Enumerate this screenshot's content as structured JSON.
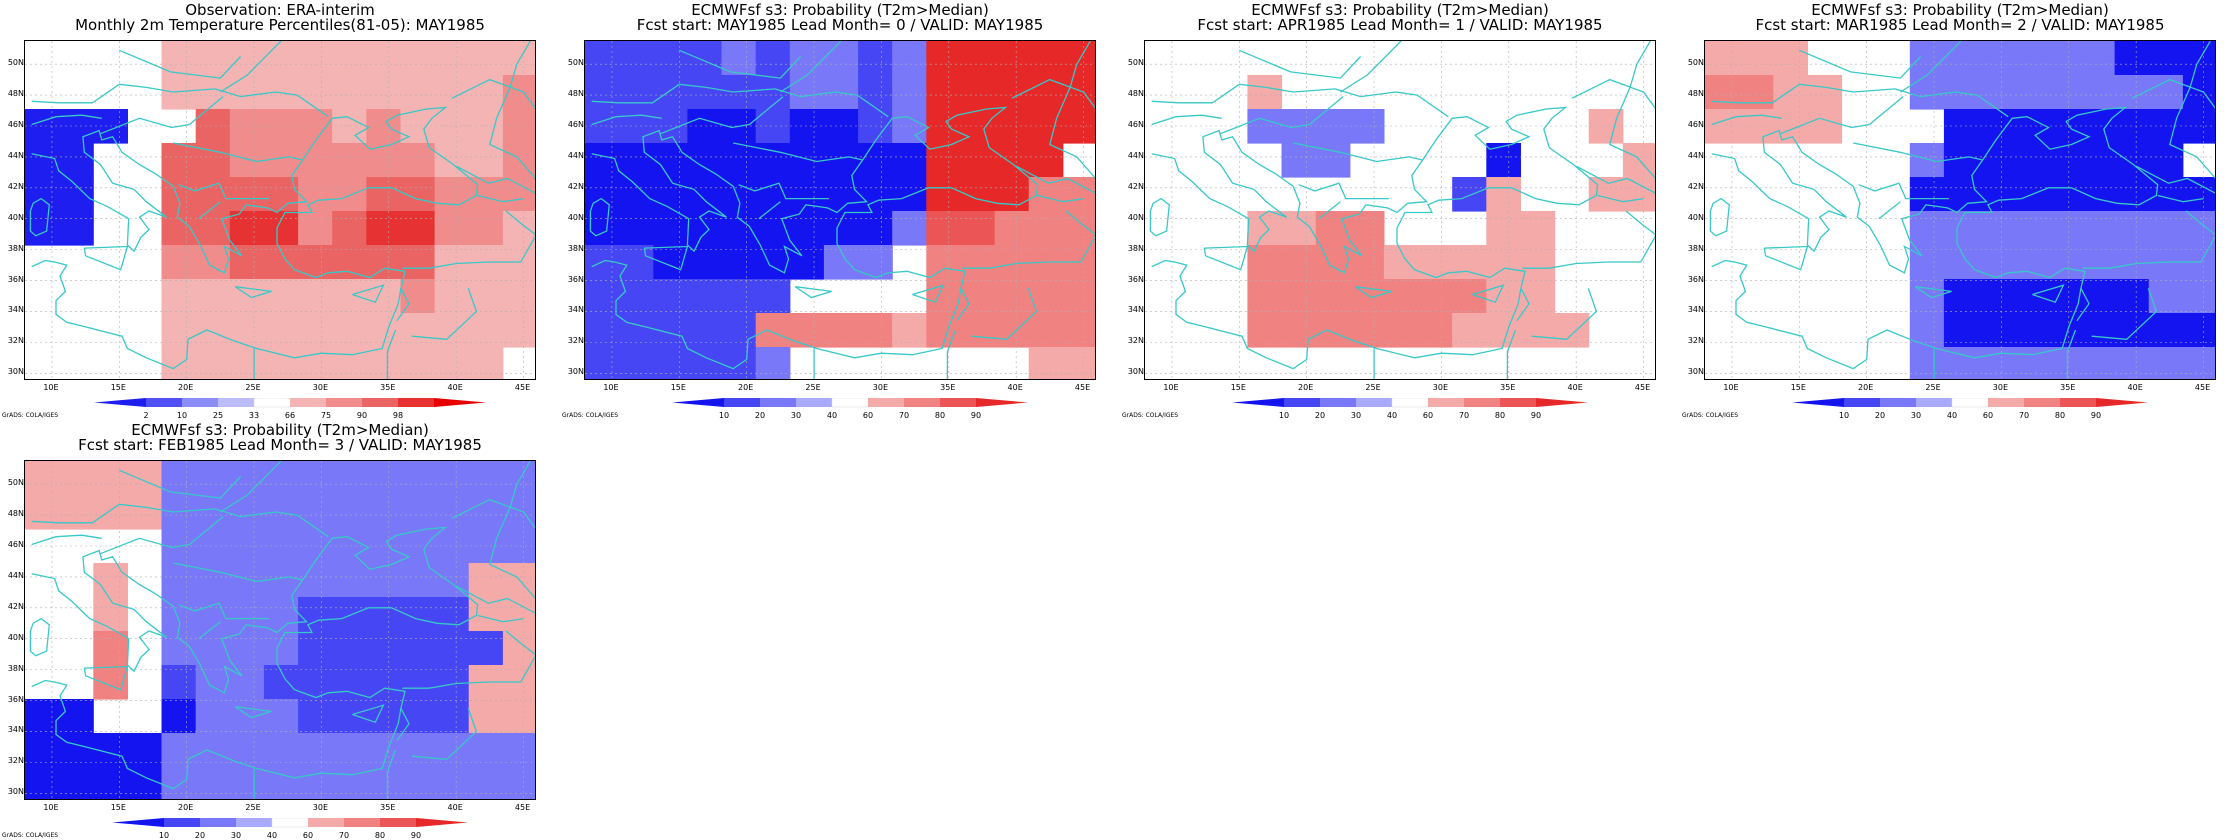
{
  "lat_ticks": [
    "30N",
    "32N",
    "34N",
    "36N",
    "38N",
    "40N",
    "42N",
    "44N",
    "46N",
    "48N",
    "50N"
  ],
  "lon_ticks": [
    "10E",
    "15E",
    "20E",
    "25E",
    "30E",
    "35E",
    "40E",
    "45E"
  ],
  "credit": "GrADS: COLA/IGES",
  "colors": {
    "obs": [
      "#1e1ef0",
      "#5050f5",
      "#8c8cf8",
      "#bcbcfa",
      "#ffffff",
      "#f5b4b4",
      "#f08c8c",
      "#eb6464",
      "#e63232",
      "#e60000"
    ],
    "fcst": [
      "#1414f0",
      "#4646f5",
      "#7878f8",
      "#aaaafa",
      "#ffffff",
      "#f5aaaa",
      "#f08282",
      "#eb5555",
      "#e62828"
    ],
    "coast": "#38c8c8"
  },
  "panels": [
    {
      "title1": "Observation: ERA-interim",
      "title2": "Monthly 2m Temperature Percentiles(81-05): MAY1985",
      "colorbar_ticks": [
        "2",
        "10",
        "25",
        "33",
        "66",
        "75",
        "90",
        "98"
      ],
      "scale": "obs",
      "grid": [
        "4444LLLLLLLLLLL",
        "4444LLLLLLLLLLM",
        "11145RQQNLQLLLM",
        "1144RRMMMMQQLLM",
        "1144RRRRMMRRMMM",
        "1144RRSSQRSSMML",
        "4444QQRRRRRRLLL",
        "4444LLLLLLLQLLL",
        "4444LLLLLLLLLLL",
        "4444LLLLLLLLLL4"
      ]
    },
    {
      "title1": "ECMWFsf s3: Probability (T2m>Median)",
      "title2": "Fcst start: MAY1985  Lead Month= 0 / VALID: MAY1985",
      "colorbar_ticks": [
        "10",
        "20",
        "30",
        "40",
        "60",
        "70",
        "80",
        "90"
      ],
      "scale": "fcst",
      "grid": [
        "2222323323SSSSS",
        "2222223323SSSSS",
        "2221121123SSSSS",
        "1111111111SSSS4",
        "1111111111SSSMM",
        "1111111113RRMMM",
        "2211111334MMMMM",
        "2222224444MMMMM",
        "22222MMMMLMMMMM",
        "2222234444444LL"
      ]
    },
    {
      "title1": "ECMWFsf s3: Probability (T2m>Median)",
      "title2": "Fcst start: APR1985  Lead Month= 1 / VALID: MAY1985",
      "colorbar_ticks": [
        "10",
        "20",
        "30",
        "40",
        "60",
        "70",
        "80",
        "90"
      ],
      "scale": "fcst",
      "grid": [
        "444444444444444",
        "444P44444444444",
        "4443333444444P4",
        "44443344441444P",
        "4444444442P44PP",
        "444PPNM444PP444",
        "444MMMMPPPPP444",
        "444MMMMMMMPP444",
        "444MMMMMMPPPP44",
        "444444444444444"
      ]
    },
    {
      "title1": "ECMWFsf s3: Probability (T2m>Median)",
      "title2": "Fcst start: MAR1985  Lead Month= 2 / VALID: MAY1985",
      "colorbar_ticks": [
        "10",
        "20",
        "30",
        "40",
        "60",
        "70",
        "80",
        "90"
      ],
      "scale": "fcst",
      "grid": [
        "PPP444333333111",
        "MMPP44333333331",
        "PPPP44411111111",
        "444444311111114",
        "444444111111111",
        "444444333333333",
        "444444333333333",
        "444444311111133",
        "444444311111111",
        "444444333333333"
      ]
    },
    {
      "title1": "ECMWFsf s3: Probability (T2m>Median)",
      "title2": "Fcst start: FEB1985  Lead Month= 3 / VALID: MAY1985",
      "colorbar_ticks": [
        "10",
        "20",
        "30",
        "40",
        "60",
        "70",
        "80",
        "90"
      ],
      "scale": "fcst",
      "grid": [
        "PPPP33333333333",
        "PPPP33333333333",
        "444433333333333",
        "44P4333333333PP",
        "44P4333322222PP",
        "44M43333222222P",
        "44M4233222222PP",
        "1144133322222PP",
        "111133333333333",
        "111133333333333"
      ]
    }
  ]
}
